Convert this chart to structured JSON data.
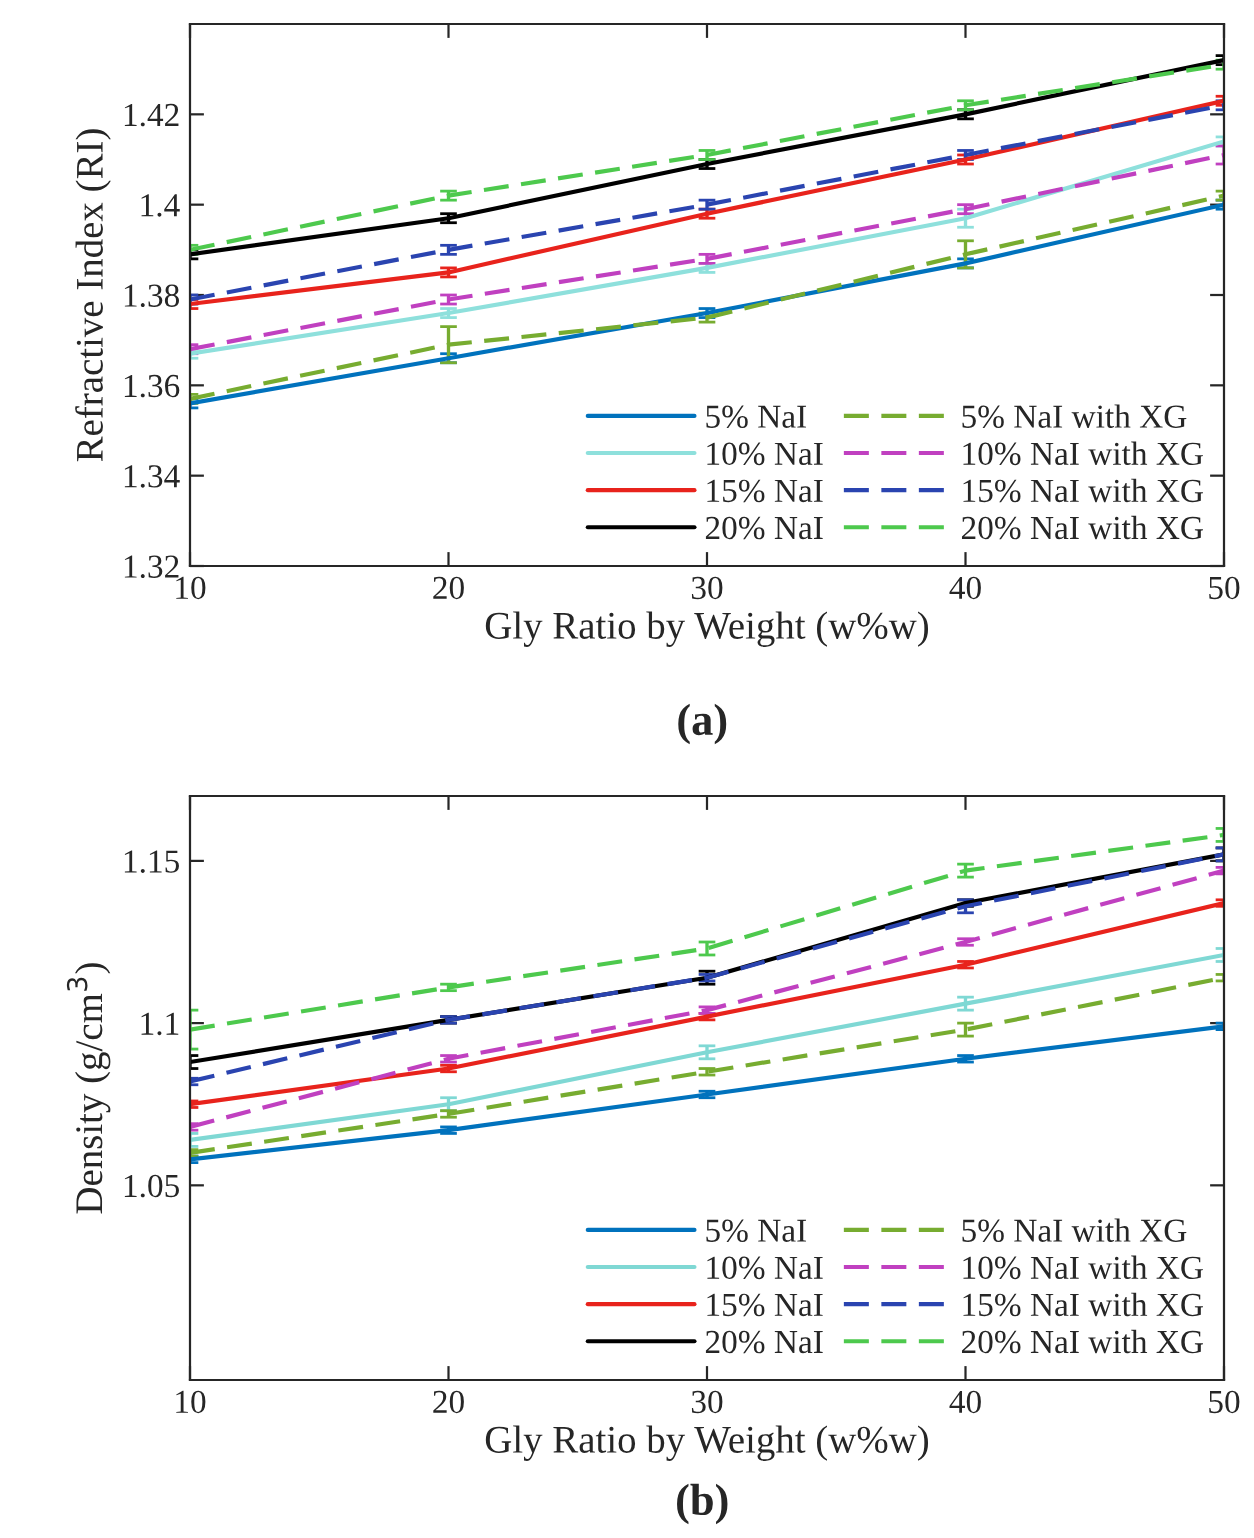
{
  "chart_data": [
    {
      "type": "line",
      "xlabel": "Gly Ratio by Weight (w%w)",
      "ylabel": "Refractive Index (RI)",
      "annotations": [
        "(a)"
      ],
      "x": [
        10,
        20,
        30,
        40,
        50
      ],
      "xlim": [
        10,
        50
      ],
      "xticks": [
        10,
        20,
        30,
        40,
        50
      ],
      "ylim": [
        1.32,
        1.44
      ],
      "yticks": [
        1.32,
        1.34,
        1.36,
        1.38,
        1.4,
        1.42
      ],
      "grid": false,
      "legend": "bottom right",
      "marker": "none",
      "series": [
        {
          "name": "5% NaI",
          "color": "#0072bd",
          "line_style": "solid",
          "values": [
            1.356,
            1.366,
            1.376,
            1.387,
            1.4
          ],
          "errors": [
            0.001,
            0.001,
            0.001,
            0.001,
            0.001
          ]
        },
        {
          "name": "10% NaI",
          "color": "#8ee0dc",
          "line_style": "solid",
          "values": [
            1.367,
            1.376,
            1.386,
            1.397,
            1.414
          ],
          "errors": [
            0.001,
            0.001,
            0.001,
            0.002,
            0.001
          ]
        },
        {
          "name": "15% NaI",
          "color": "#e8231c",
          "line_style": "solid",
          "values": [
            1.378,
            1.385,
            1.398,
            1.41,
            1.423
          ],
          "errors": [
            0.001,
            0.001,
            0.001,
            0.001,
            0.001
          ]
        },
        {
          "name": "20% NaI",
          "color": "#000000",
          "line_style": "solid",
          "values": [
            1.389,
            1.397,
            1.409,
            1.42,
            1.432
          ],
          "errors": [
            0.001,
            0.001,
            0.001,
            0.001,
            0.001
          ]
        },
        {
          "name": "5% NaI with XG",
          "color": "#77ac30",
          "line_style": "dashed",
          "values": [
            1.357,
            1.369,
            1.375,
            1.389,
            1.402
          ],
          "errors": [
            0.001,
            0.004,
            0.001,
            0.003,
            0.001
          ]
        },
        {
          "name": "10% NaI with XG",
          "color": "#c040c0",
          "line_style": "dashed",
          "values": [
            1.368,
            1.379,
            1.388,
            1.399,
            1.411
          ],
          "errors": [
            0.001,
            0.001,
            0.001,
            0.001,
            0.002
          ]
        },
        {
          "name": "15% NaI with XG",
          "color": "#2a44b0",
          "line_style": "dashed",
          "values": [
            1.379,
            1.39,
            1.4,
            1.411,
            1.422
          ],
          "errors": [
            0.001,
            0.001,
            0.001,
            0.001,
            0.001
          ]
        },
        {
          "name": "20% NaI with XG",
          "color": "#4dc94d",
          "line_style": "dashed",
          "values": [
            1.39,
            1.402,
            1.411,
            1.422,
            1.431
          ],
          "errors": [
            0.001,
            0.001,
            0.001,
            0.001,
            0.001
          ]
        }
      ]
    },
    {
      "type": "line",
      "xlabel": "Gly Ratio by Weight (w%w)",
      "ylabel": "Density (g/cm$^{3}$)",
      "annotations": [
        "(b)"
      ],
      "x": [
        10,
        20,
        30,
        40,
        50
      ],
      "xlim": [
        10,
        50
      ],
      "xticks": [
        10,
        20,
        30,
        40,
        50
      ],
      "ylim": [
        0.99,
        1.17
      ],
      "yticks": [
        1.05,
        {
          "value": 1.1,
          "label": "1.1"
        },
        1.15
      ],
      "grid": false,
      "legend": "bottom right",
      "marker": "none",
      "series": [
        {
          "name": "5% NaI",
          "color": "#0072bd",
          "line_style": "solid",
          "values": [
            1.058,
            1.067,
            1.078,
            1.089,
            1.099
          ],
          "errors": [
            0.001,
            0.001,
            0.001,
            0.001,
            0.001
          ]
        },
        {
          "name": "10% NaI",
          "color": "#7fd8d4",
          "line_style": "solid",
          "values": [
            1.064,
            1.075,
            1.091,
            1.106,
            1.121
          ],
          "errors": [
            0.002,
            0.002,
            0.002,
            0.002,
            0.002
          ]
        },
        {
          "name": "15% NaI",
          "color": "#e8231c",
          "line_style": "solid",
          "values": [
            1.075,
            1.086,
            1.102,
            1.118,
            1.137
          ],
          "errors": [
            0.001,
            0.001,
            0.001,
            0.001,
            0.001
          ]
        },
        {
          "name": "20% NaI",
          "color": "#000000",
          "line_style": "solid",
          "values": [
            1.088,
            1.101,
            1.114,
            1.137,
            1.152
          ],
          "errors": [
            0.002,
            0.001,
            0.002,
            0.001,
            0.002
          ]
        },
        {
          "name": "5% NaI with XG",
          "color": "#77ac30",
          "line_style": "dashed",
          "values": [
            1.06,
            1.072,
            1.085,
            1.098,
            1.114
          ],
          "errors": [
            0.001,
            0.001,
            0.001,
            0.002,
            0.001
          ]
        },
        {
          "name": "10% NaI with XG",
          "color": "#c040c0",
          "line_style": "dashed",
          "values": [
            1.068,
            1.089,
            1.104,
            1.125,
            1.147
          ],
          "errors": [
            0.001,
            0.001,
            0.001,
            0.001,
            0.001
          ]
        },
        {
          "name": "15% NaI with XG",
          "color": "#2a44b0",
          "line_style": "dashed",
          "values": [
            1.082,
            1.101,
            1.114,
            1.136,
            1.152
          ],
          "errors": [
            0.001,
            0.001,
            0.001,
            0.002,
            0.002
          ]
        },
        {
          "name": "20% NaI with XG",
          "color": "#4dc94d",
          "line_style": "dashed",
          "values": [
            1.098,
            1.111,
            1.123,
            1.147,
            1.158
          ],
          "errors": [
            0.006,
            0.001,
            0.002,
            0.002,
            0.002
          ]
        }
      ]
    }
  ]
}
